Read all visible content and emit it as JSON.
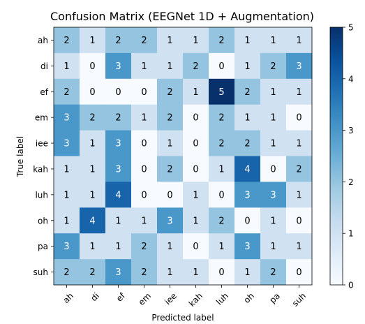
{
  "chart_data": {
    "type": "heatmap",
    "title": "Confusion Matrix (EEGNet 1D + Augmentation)",
    "xlabel": "Predicted label",
    "ylabel": "True label",
    "x_categories": [
      "ah",
      "di",
      "ef",
      "em",
      "iee",
      "kah",
      "luh",
      "oh",
      "pa",
      "suh"
    ],
    "y_categories": [
      "ah",
      "di",
      "ef",
      "em",
      "iee",
      "kah",
      "luh",
      "oh",
      "pa",
      "suh"
    ],
    "matrix": [
      [
        2,
        1,
        2,
        2,
        1,
        1,
        2,
        1,
        1,
        1
      ],
      [
        1,
        0,
        3,
        1,
        1,
        2,
        0,
        1,
        2,
        3
      ],
      [
        2,
        0,
        0,
        0,
        2,
        1,
        5,
        2,
        1,
        1
      ],
      [
        3,
        2,
        2,
        1,
        2,
        0,
        2,
        1,
        1,
        0
      ],
      [
        3,
        1,
        3,
        0,
        1,
        0,
        2,
        2,
        1,
        1
      ],
      [
        1,
        1,
        3,
        0,
        2,
        0,
        1,
        4,
        0,
        2
      ],
      [
        1,
        1,
        4,
        0,
        0,
        1,
        0,
        3,
        3,
        1
      ],
      [
        1,
        4,
        1,
        1,
        3,
        1,
        2,
        0,
        1,
        0
      ],
      [
        3,
        1,
        1,
        2,
        1,
        0,
        1,
        3,
        1,
        1
      ],
      [
        2,
        2,
        3,
        2,
        1,
        1,
        0,
        1,
        2,
        0
      ]
    ],
    "colormap": "Blues",
    "vmin": 0,
    "vmax": 5,
    "colorbar_ticks": [
      "0",
      "1",
      "2",
      "3",
      "4",
      "5"
    ],
    "grid": false
  }
}
